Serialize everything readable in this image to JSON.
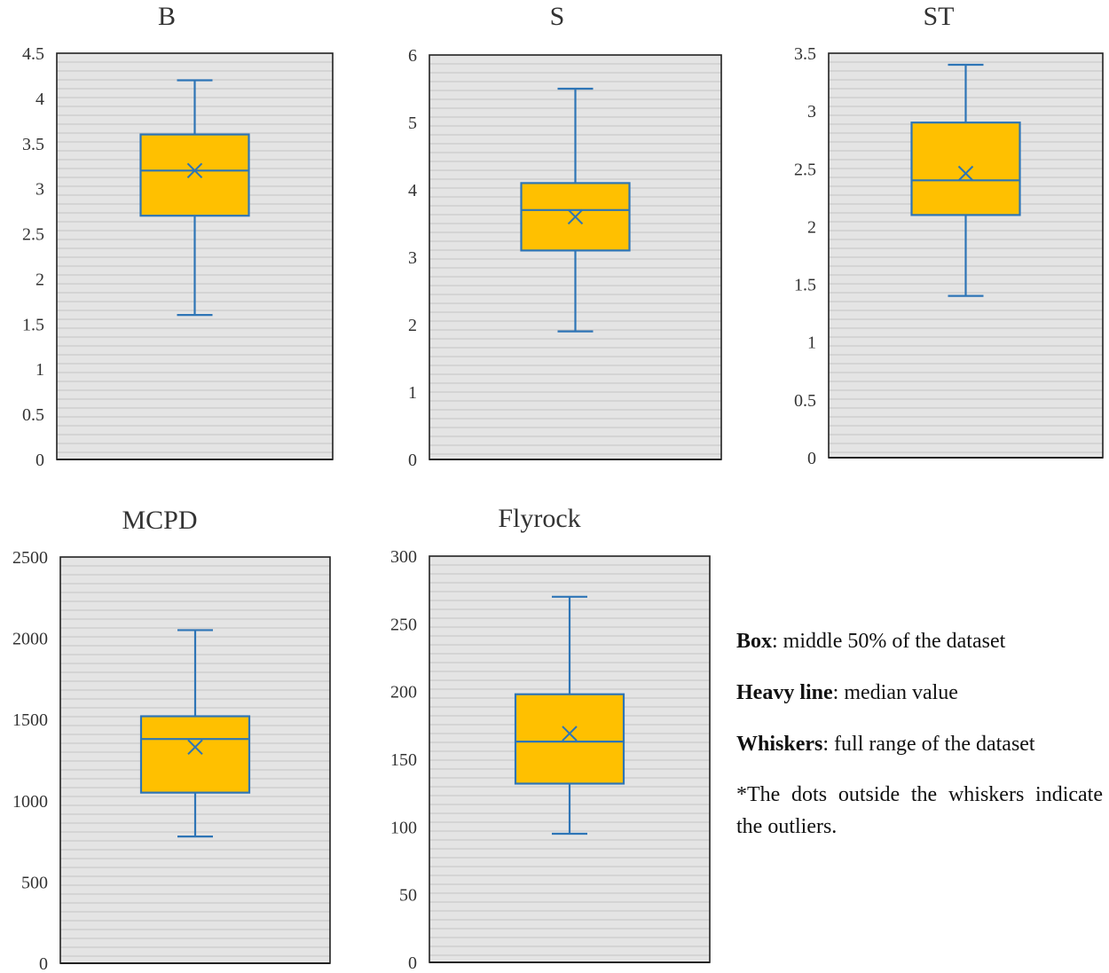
{
  "colors": {
    "plot_bg": "#e4e4e4",
    "gridline": "#c4c4c4",
    "box_fill": "#ffc000",
    "box_stroke": "#2e75b6",
    "axis": "#222222"
  },
  "chart_data": [
    {
      "type": "box",
      "title": "B",
      "ylim": [
        0,
        4.5
      ],
      "ticks": [
        "0",
        "0.5",
        "1",
        "1.5",
        "2",
        "2.5",
        "3",
        "3.5",
        "4",
        "4.5"
      ],
      "gridlines": "horizontal",
      "box": {
        "min": 1.6,
        "q1": 2.7,
        "median": 3.2,
        "q3": 3.6,
        "max": 4.2,
        "mean": 3.2
      }
    },
    {
      "type": "box",
      "title": "S",
      "ylim": [
        0,
        6
      ],
      "ticks": [
        "0",
        "1",
        "2",
        "3",
        "4",
        "5",
        "6"
      ],
      "gridlines": "horizontal",
      "box": {
        "min": 1.9,
        "q1": 3.1,
        "median": 3.7,
        "q3": 4.1,
        "max": 5.5,
        "mean": 3.6
      }
    },
    {
      "type": "box",
      "title": "ST",
      "ylim": [
        0,
        3.5
      ],
      "ticks": [
        "0",
        "0.5",
        "1",
        "1.5",
        "2",
        "2.5",
        "3",
        "3.5"
      ],
      "gridlines": "horizontal",
      "box": {
        "min": 1.4,
        "q1": 2.1,
        "median": 2.4,
        "q3": 2.9,
        "max": 3.4,
        "mean": 2.46
      }
    },
    {
      "type": "box",
      "title": "MCPD",
      "ylim": [
        0,
        2500
      ],
      "ticks": [
        "0",
        "500",
        "1000",
        "1500",
        "2000",
        "2500"
      ],
      "gridlines": "horizontal",
      "box": {
        "min": 780,
        "q1": 1050,
        "median": 1380,
        "q3": 1520,
        "max": 2050,
        "mean": 1330
      }
    },
    {
      "type": "box",
      "title": "Flyrock",
      "ylim": [
        0,
        300
      ],
      "ticks": [
        "0",
        "50",
        "100",
        "150",
        "200",
        "250",
        "300"
      ],
      "gridlines": "horizontal",
      "box": {
        "min": 95,
        "q1": 132,
        "median": 163,
        "q3": 198,
        "max": 270,
        "mean": 169
      }
    }
  ],
  "legend": {
    "box_term": "Box",
    "box_text": ": middle 50% of the dataset",
    "median_term": "Heavy line",
    "median_text": ": median value",
    "whiskers_term": "Whiskers",
    "whiskers_text": ": full range of the dataset",
    "note": "*The dots outside the whiskers indicate the outliers."
  }
}
